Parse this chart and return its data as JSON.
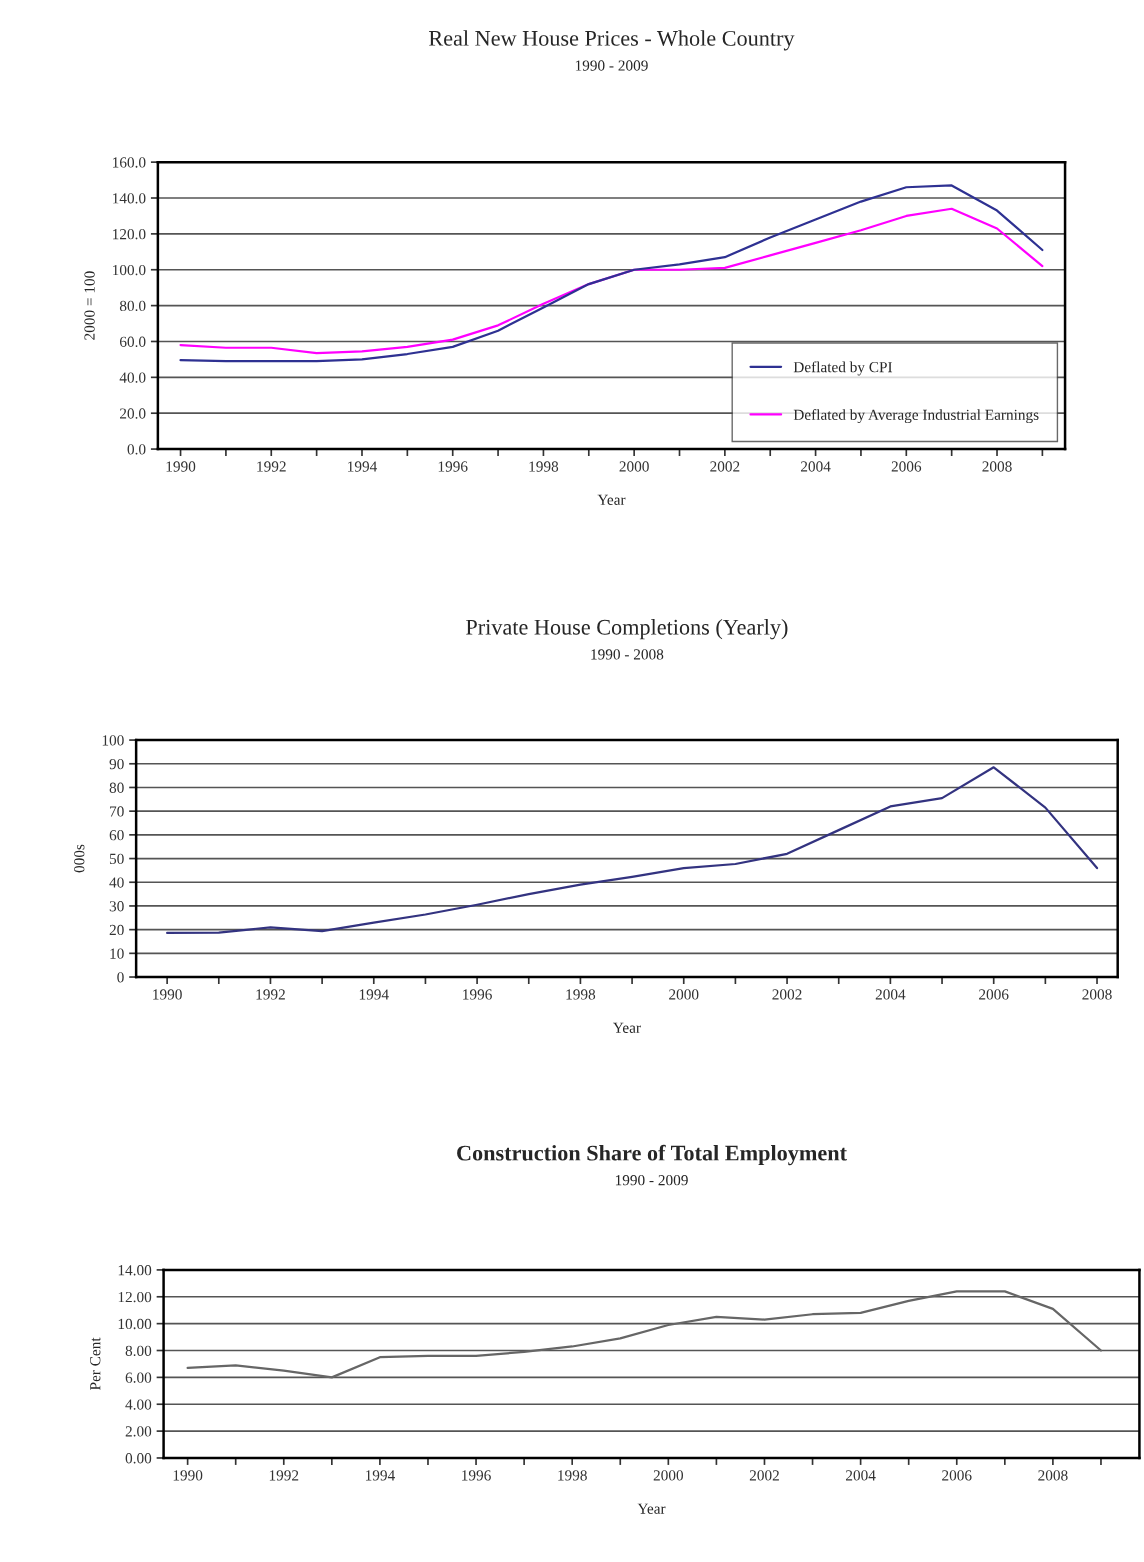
{
  "chart_data": [
    {
      "type": "line",
      "title": "Real New House Prices - Whole Country",
      "subtitle": "1990 - 2009",
      "xlabel": "Year",
      "ylabel": "2000 = 100",
      "x": [
        1990,
        1991,
        1992,
        1993,
        1994,
        1995,
        1996,
        1997,
        1998,
        1999,
        2000,
        2001,
        2002,
        2003,
        2004,
        2005,
        2006,
        2007,
        2008,
        2009
      ],
      "series": [
        {
          "name": "Deflated by CPI",
          "color": "#2e3192",
          "values": [
            49.6,
            49,
            49,
            49,
            50,
            53,
            57,
            66,
            79,
            92,
            100,
            103,
            107,
            118,
            128,
            138,
            146,
            147,
            133,
            111
          ]
        },
        {
          "name": "Deflated by Average Industrial Earnings",
          "color": "#ff00ff",
          "values": [
            58,
            56.5,
            56.5,
            53.5,
            54.5,
            57,
            61,
            69,
            81,
            92,
            100,
            100,
            101,
            108,
            115,
            122,
            130,
            134,
            123,
            102
          ]
        }
      ],
      "xlim": [
        1989.5,
        2009.5
      ],
      "xticks": [
        1990,
        {
          "value": 1991,
          "label": null
        },
        1992,
        {
          "value": 1993,
          "label": null
        },
        1994,
        {
          "value": 1995,
          "label": null
        },
        1996,
        {
          "value": 1997,
          "label": null
        },
        1998,
        {
          "value": 1999,
          "label": null
        },
        2000,
        {
          "value": 2001,
          "label": null
        },
        2002,
        {
          "value": 2003,
          "label": null
        },
        2004,
        {
          "value": 2005,
          "label": null
        },
        2006,
        {
          "value": 2007,
          "label": null
        },
        2008,
        {
          "value": 2009,
          "label": null
        }
      ],
      "ylim": [
        0,
        160
      ],
      "yticks": [
        {
          "value": 0,
          "label": "0.0"
        },
        {
          "value": 20,
          "label": "20.0"
        },
        {
          "value": 40,
          "label": "40.0"
        },
        {
          "value": 60,
          "label": "60.0"
        },
        {
          "value": 80,
          "label": "80.0"
        },
        {
          "value": 100,
          "label": "100.0"
        },
        {
          "value": 120,
          "label": "120.0"
        },
        {
          "value": 140,
          "label": "140.0"
        },
        {
          "value": 160,
          "label": "160.0"
        }
      ],
      "grid": "y",
      "legend": "lower right",
      "marker": "none",
      "line_style": "solid"
    },
    {
      "type": "line",
      "title": "Private House Completions (Yearly)",
      "subtitle": "1990 - 2008",
      "xlabel": "Year",
      "ylabel": "000s",
      "x": [
        1990,
        1991,
        1992,
        1993,
        1994,
        1995,
        1996,
        1997,
        1998,
        1999,
        2000,
        2001,
        2002,
        2003,
        2004,
        2005,
        2006,
        2007,
        2008
      ],
      "series": [
        {
          "color": "#333380",
          "values": [
            18.6,
            18.7,
            21,
            19.4,
            23,
            26.4,
            30.5,
            35,
            39,
            42.3,
            46,
            47.7,
            52,
            62,
            72,
            75.5,
            88.5,
            71.5,
            46
          ]
        }
      ],
      "xlim": [
        1989.4,
        2008.4
      ],
      "xticks": [
        1990,
        {
          "value": 1991,
          "label": null
        },
        1992,
        {
          "value": 1993,
          "label": null
        },
        1994,
        {
          "value": 1995,
          "label": null
        },
        1996,
        {
          "value": 1997,
          "label": null
        },
        1998,
        {
          "value": 1999,
          "label": null
        },
        2000,
        {
          "value": 2001,
          "label": null
        },
        2002,
        {
          "value": 2003,
          "label": null
        },
        2004,
        {
          "value": 2005,
          "label": null
        },
        2006,
        {
          "value": 2007,
          "label": null
        },
        2008
      ],
      "ylim": [
        0,
        100
      ],
      "yticks": [
        0,
        10,
        20,
        30,
        40,
        50,
        60,
        70,
        80,
        90,
        100
      ],
      "grid": "y",
      "marker": "none",
      "line_style": "solid"
    },
    {
      "type": "line",
      "title": "Construction Share of Total Employment",
      "subtitle": "1990 - 2009",
      "xlabel": "Year",
      "ylabel": "Per Cent",
      "x": [
        1990,
        1991,
        1992,
        1993,
        1994,
        1995,
        1996,
        1997,
        1998,
        1999,
        2000,
        2001,
        2002,
        2003,
        2004,
        2005,
        2006,
        2007,
        2008,
        2009
      ],
      "series": [
        {
          "color": "#666666",
          "values": [
            6.7,
            6.9,
            6.5,
            6.0,
            7.5,
            7.6,
            7.6,
            7.9,
            8.3,
            8.9,
            9.9,
            10.5,
            10.3,
            10.7,
            10.8,
            11.7,
            12.4,
            12.4,
            11.1,
            8.0
          ]
        }
      ],
      "xlim": [
        1989.5,
        2009.8
      ],
      "xticks": [
        1990,
        {
          "value": 1991,
          "label": null
        },
        1992,
        {
          "value": 1993,
          "label": null
        },
        1994,
        {
          "value": 1995,
          "label": null
        },
        1996,
        {
          "value": 1997,
          "label": null
        },
        1998,
        {
          "value": 1999,
          "label": null
        },
        2000,
        {
          "value": 2001,
          "label": null
        },
        2002,
        {
          "value": 2003,
          "label": null
        },
        2004,
        {
          "value": 2005,
          "label": null
        },
        2006,
        {
          "value": 2007,
          "label": null
        },
        2008,
        {
          "value": 2009,
          "label": null
        }
      ],
      "ylim": [
        0,
        14
      ],
      "yticks": [
        {
          "value": 0,
          "label": "0.00"
        },
        {
          "value": 2,
          "label": "2.00"
        },
        {
          "value": 4,
          "label": "4.00"
        },
        {
          "value": 6,
          "label": "6.00"
        },
        {
          "value": 8,
          "label": "8.00"
        },
        {
          "value": 10,
          "label": "10.00"
        },
        {
          "value": 12,
          "label": "12.00"
        },
        {
          "value": 14,
          "label": "14.00"
        }
      ],
      "grid": "y",
      "marker": "none",
      "line_style": "solid"
    }
  ]
}
